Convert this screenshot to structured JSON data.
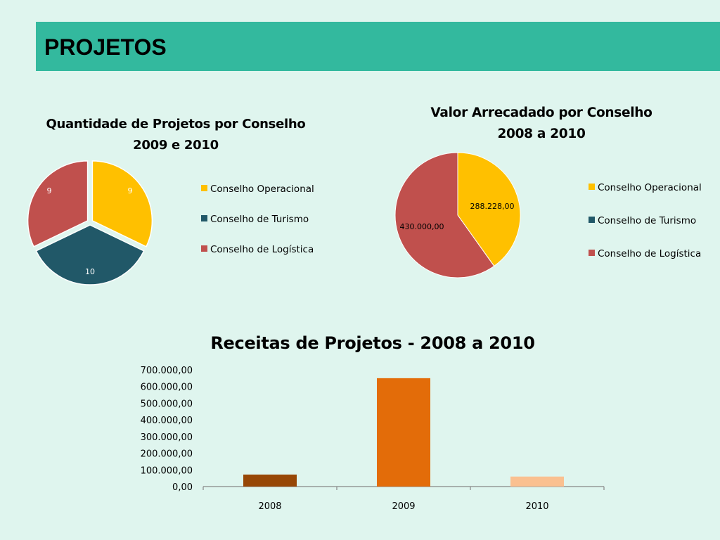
{
  "page": {
    "title": "PROJETOS"
  },
  "colors": {
    "header": "#33b99e",
    "background": "#dff5ee",
    "operacional": "#ffc000",
    "turismo": "#215868",
    "logistica": "#c0504d",
    "bar_2008": "#974706",
    "bar_2009": "#e36c09",
    "bar_2010": "#fac090"
  },
  "chart_data": [
    {
      "type": "pie",
      "title_line1": "Quantidade  de Projetos  por Conselho",
      "title_line2": "2009 e 2010",
      "categories": [
        "Conselho Operacional",
        "Conselho de Turismo",
        "Conselho de Logística"
      ],
      "values": [
        9,
        10,
        9
      ],
      "value_labels": [
        "9",
        "10",
        "9"
      ],
      "legend_position": "right",
      "exploded": true
    },
    {
      "type": "pie",
      "title_line1": "Valor Arrecadado por Conselho",
      "title_line2": "2008 a 2010",
      "categories": [
        "Conselho Operacional",
        "Conselho de Turismo",
        "Conselho de Logística"
      ],
      "values": [
        288228.0,
        0,
        430000.0
      ],
      "value_labels": [
        "288.228,00",
        "",
        "430.000,00"
      ],
      "legend_position": "right"
    },
    {
      "type": "bar",
      "title": "Receitas de Projetos - 2008 a 2010",
      "categories": [
        "2008",
        "2009",
        "2010"
      ],
      "values": [
        72000,
        650000,
        60000
      ],
      "ylim": [
        0,
        700000
      ],
      "yticks": [
        0,
        100000,
        200000,
        300000,
        400000,
        500000,
        600000,
        700000
      ],
      "ytick_labels": [
        "0,00",
        "100.000,00",
        "200.000,00",
        "300.000,00",
        "400.000,00",
        "500.000,00",
        "600.000,00",
        "700.000,00"
      ],
      "grid": false,
      "legend": false
    }
  ]
}
